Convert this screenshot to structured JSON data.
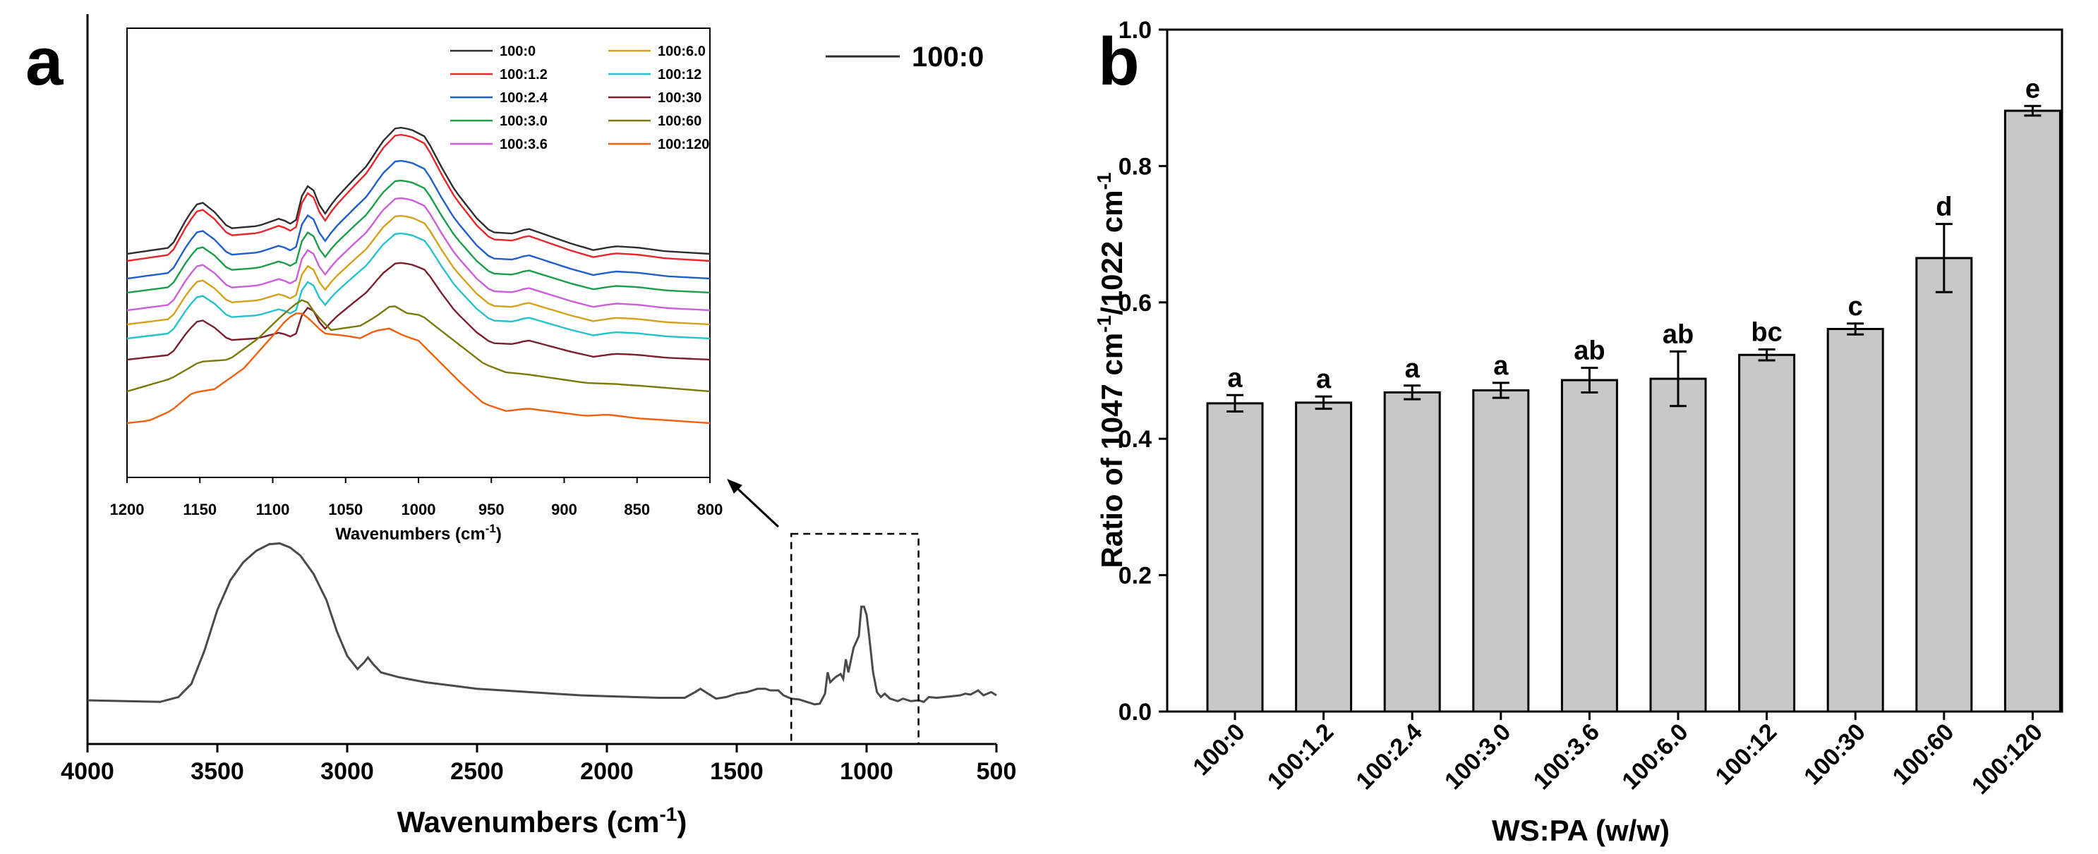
{
  "chart_data": [
    {
      "panel": "a",
      "type": "line",
      "title": "",
      "xlabel": "Wavenumbers (cm",
      "xlabel_sup": "-1",
      "xlabel_close": ")",
      "ylabel": "",
      "xlim": [
        4000,
        500
      ],
      "xticks": [
        "4000",
        "3500",
        "3000",
        "2500",
        "2000",
        "1500",
        "1000",
        "500"
      ],
      "xtick_values": [
        4000,
        3500,
        3000,
        2500,
        2000,
        1500,
        1000,
        500
      ],
      "legend": "100:0",
      "line_color": "#4a4a4a",
      "highlight_box": {
        "x_from": 1290,
        "x_to": 800
      },
      "series": [
        {
          "name": "100:0",
          "points": [
            [
              4000,
              0.03
            ],
            [
              3850,
              0.025
            ],
            [
              3720,
              0.02
            ],
            [
              3650,
              0.05
            ],
            [
              3600,
              0.13
            ],
            [
              3550,
              0.33
            ],
            [
              3500,
              0.58
            ],
            [
              3450,
              0.76
            ],
            [
              3400,
              0.87
            ],
            [
              3350,
              0.94
            ],
            [
              3300,
              0.98
            ],
            [
              3260,
              0.985
            ],
            [
              3220,
              0.96
            ],
            [
              3180,
              0.91
            ],
            [
              3130,
              0.8
            ],
            [
              3080,
              0.64
            ],
            [
              3040,
              0.45
            ],
            [
              3000,
              0.3
            ],
            [
              2960,
              0.22
            ],
            [
              2935,
              0.26
            ],
            [
              2920,
              0.29
            ],
            [
              2900,
              0.25
            ],
            [
              2870,
              0.2
            ],
            [
              2800,
              0.17
            ],
            [
              2700,
              0.14
            ],
            [
              2600,
              0.12
            ],
            [
              2500,
              0.1
            ],
            [
              2400,
              0.09
            ],
            [
              2300,
              0.08
            ],
            [
              2200,
              0.07
            ],
            [
              2100,
              0.06
            ],
            [
              2000,
              0.055
            ],
            [
              1900,
              0.05
            ],
            [
              1800,
              0.045
            ],
            [
              1700,
              0.045
            ],
            [
              1660,
              0.08
            ],
            [
              1640,
              0.1
            ],
            [
              1620,
              0.08
            ],
            [
              1580,
              0.04
            ],
            [
              1540,
              0.05
            ],
            [
              1500,
              0.07
            ],
            [
              1460,
              0.08
            ],
            [
              1420,
              0.1
            ],
            [
              1390,
              0.1
            ],
            [
              1370,
              0.09
            ],
            [
              1340,
              0.09
            ],
            [
              1320,
              0.06
            ],
            [
              1290,
              0.04
            ],
            [
              1260,
              0.035
            ],
            [
              1240,
              0.025
            ],
            [
              1200,
              0.005
            ],
            [
              1180,
              0.01
            ],
            [
              1160,
              0.07
            ],
            [
              1150,
              0.2
            ],
            [
              1140,
              0.14
            ],
            [
              1120,
              0.17
            ],
            [
              1100,
              0.19
            ],
            [
              1090,
              0.16
            ],
            [
              1080,
              0.28
            ],
            [
              1070,
              0.2
            ],
            [
              1050,
              0.35
            ],
            [
              1030,
              0.42
            ],
            [
              1020,
              0.6
            ],
            [
              1010,
              0.6
            ],
            [
              1000,
              0.55
            ],
            [
              990,
              0.42
            ],
            [
              975,
              0.2
            ],
            [
              960,
              0.08
            ],
            [
              945,
              0.05
            ],
            [
              930,
              0.07
            ],
            [
              910,
              0.04
            ],
            [
              880,
              0.025
            ],
            [
              860,
              0.04
            ],
            [
              830,
              0.025
            ],
            [
              800,
              0.03
            ],
            [
              780,
              0.02
            ],
            [
              760,
              0.05
            ],
            [
              730,
              0.045
            ],
            [
              700,
              0.05
            ],
            [
              670,
              0.055
            ],
            [
              640,
              0.06
            ],
            [
              620,
              0.07
            ],
            [
              600,
              0.065
            ],
            [
              570,
              0.09
            ],
            [
              550,
              0.06
            ],
            [
              520,
              0.08
            ],
            [
              500,
              0.06
            ]
          ]
        }
      ],
      "inset": {
        "type": "line",
        "xlabel": "Wavenumbers (cm",
        "xlabel_sup": "-1",
        "xlabel_close": ")",
        "xlim": [
          1200,
          800
        ],
        "xticks": [
          "1200",
          "1150",
          "1100",
          "1050",
          "1000",
          "950",
          "900",
          "850",
          "800"
        ],
        "xtick_values": [
          1200,
          1150,
          1100,
          1050,
          1000,
          950,
          900,
          850,
          800
        ],
        "series": [
          {
            "name": "100:0",
            "color": "#2e2e2e"
          },
          {
            "name": "100:1.2",
            "color": "#e8262b"
          },
          {
            "name": "100:2.4",
            "color": "#1f5fcc"
          },
          {
            "name": "100:3.0",
            "color": "#1a9e4a"
          },
          {
            "name": "100:3.6",
            "color": "#cc5fd9"
          },
          {
            "name": "100:6.0",
            "color": "#d4a21a"
          },
          {
            "name": "100:12",
            "color": "#26c2cc"
          },
          {
            "name": "100:30",
            "color": "#7a1f2e"
          },
          {
            "name": "100:60",
            "color": "#7a7a0a"
          },
          {
            "name": "100:120",
            "color": "#f2600f"
          }
        ]
      }
    },
    {
      "panel": "b",
      "type": "bar",
      "title": "",
      "xlabel": "WS:PA (w/w)",
      "ylabel": "Ratio of 1047 cm",
      "ylabel_sup1": "-1",
      "ylabel_mid": "/1022 cm",
      "ylabel_sup2": "-1",
      "ylim": [
        0,
        1.0
      ],
      "yticks": [
        "0.0",
        "0.2",
        "0.4",
        "0.6",
        "0.8",
        "1.0"
      ],
      "ytick_values": [
        0,
        0.2,
        0.4,
        0.6,
        0.8,
        1.0
      ],
      "bar_color": "#c8c8c8",
      "categories": [
        "100:0",
        "100:1.2",
        "100:2.4",
        "100:3.0",
        "100:3.6",
        "100:6.0",
        "100:12",
        "100:30",
        "100:60",
        "100:120"
      ],
      "values": [
        0.452,
        0.453,
        0.468,
        0.471,
        0.486,
        0.488,
        0.523,
        0.561,
        0.665,
        0.881
      ],
      "errors": [
        0.012,
        0.009,
        0.01,
        0.011,
        0.018,
        0.04,
        0.008,
        0.008,
        0.05,
        0.007
      ],
      "significance": [
        "a",
        "a",
        "a",
        "a",
        "ab",
        "ab",
        "bc",
        "c",
        "d",
        "e"
      ]
    }
  ],
  "panel_labels": {
    "a": "a",
    "b": "b"
  }
}
